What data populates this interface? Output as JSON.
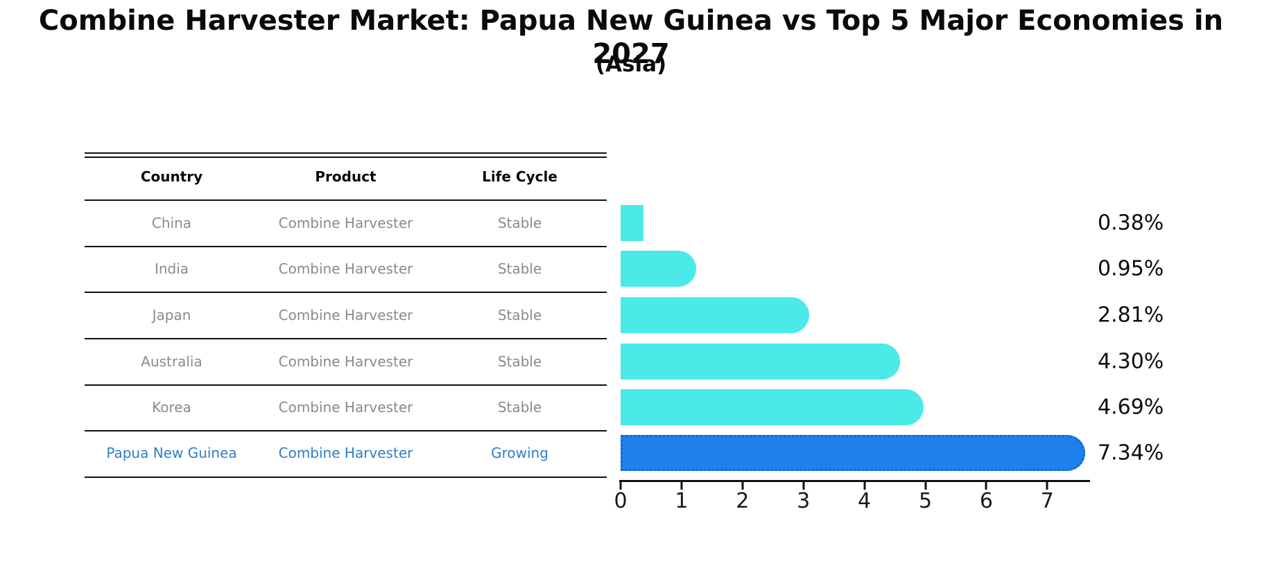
{
  "chart_data": {
    "type": "bar",
    "orientation": "horizontal",
    "title": "Combine Harvester Market: Papua New Guinea vs Top 5 Major Economies in 2027",
    "subtitle": "(Asia)",
    "categories": [
      "China",
      "India",
      "Japan",
      "Australia",
      "Korea",
      "Papua New Guinea"
    ],
    "values": [
      0.38,
      0.95,
      2.81,
      4.3,
      4.69,
      7.34
    ],
    "value_labels": [
      "0.38%",
      "0.95%",
      "2.81%",
      "4.30%",
      "4.69%",
      "7.34%"
    ],
    "xticks": [
      "0",
      "1",
      "2",
      "3",
      "4",
      "5",
      "6",
      "7"
    ],
    "xlim": [
      0,
      7.7
    ],
    "grid": "off",
    "legend": "none",
    "bar_colors": [
      "#4be9e8",
      "#4be9e8",
      "#4be9e8",
      "#4be9e8",
      "#4be9e8",
      "#1e80ec"
    ],
    "highlight_index": 5,
    "highlight_color": "#1e80ec",
    "base_color": "#4be9e8"
  },
  "table": {
    "headers": [
      "Country",
      "Product",
      "Life Cycle"
    ],
    "rows": [
      {
        "country": "China",
        "product": "Combine Harvester",
        "life_cycle": "Stable"
      },
      {
        "country": "India",
        "product": "Combine Harvester",
        "life_cycle": "Stable"
      },
      {
        "country": "Japan",
        "product": "Combine Harvester",
        "life_cycle": "Stable"
      },
      {
        "country": "Australia",
        "product": "Combine Harvester",
        "life_cycle": "Stable"
      },
      {
        "country": "Korea",
        "product": "Combine Harvester",
        "life_cycle": "Stable"
      },
      {
        "country": "Papua New Guinea",
        "product": "Combine Harvester",
        "life_cycle": "Growing"
      }
    ]
  }
}
